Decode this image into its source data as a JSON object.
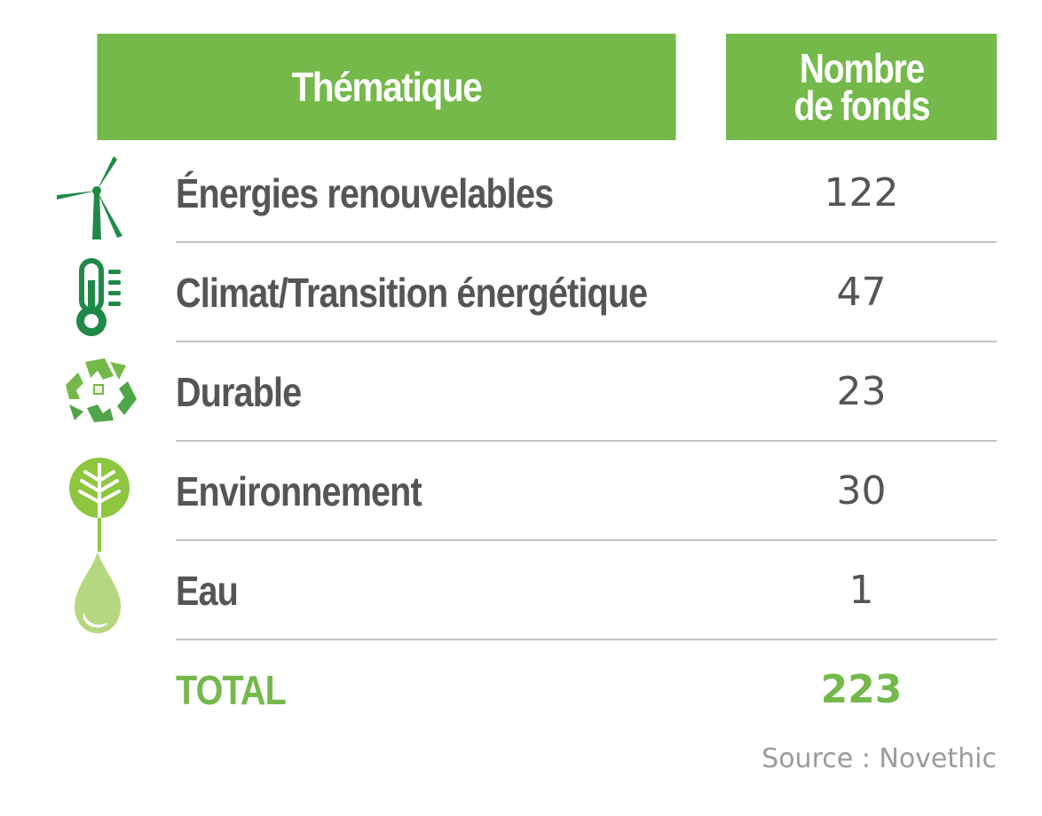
{
  "table": {
    "header": {
      "theme": "Thématique",
      "count_line1": "Nombre",
      "count_line2": "de fonds"
    },
    "rows": [
      {
        "icon": "wind-turbine-icon",
        "label": "Énergies renouvelables",
        "value": "122"
      },
      {
        "icon": "thermometer-icon",
        "label": "Climat/Transition énergétique",
        "value": "47"
      },
      {
        "icon": "recycle-icon",
        "label": "Durable",
        "value": "23"
      },
      {
        "icon": "tree-icon",
        "label": "Environnement",
        "value": "30"
      },
      {
        "icon": "water-drop-icon",
        "label": "Eau",
        "value": "1"
      }
    ],
    "total": {
      "label": "TOTAL",
      "value": "223"
    }
  },
  "source": "Source : Novethic",
  "colors": {
    "accent": "#74b94a",
    "dark_green": "#1f8a47",
    "text": "#555555"
  },
  "chart_data": {
    "type": "table",
    "columns": [
      "Thématique",
      "Nombre de fonds"
    ],
    "categories": [
      "Énergies renouvelables",
      "Climat/Transition énergétique",
      "Durable",
      "Environnement",
      "Eau"
    ],
    "values": [
      122,
      47,
      23,
      30,
      1
    ],
    "total": 223
  }
}
